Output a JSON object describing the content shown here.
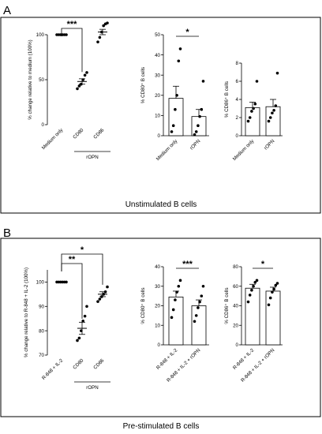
{
  "panels": {
    "A": {
      "letter": "A",
      "caption": "Unstimulated B cells"
    },
    "B": {
      "letter": "B",
      "caption": "Pre-stimulated B cells"
    }
  },
  "chart_data": [
    {
      "id": "A1",
      "type": "scatter",
      "panel": "A",
      "ylabel": "% change relative to medium (100%)",
      "ylim": [
        0,
        100
      ],
      "yticks": [
        "0",
        "50",
        "100"
      ],
      "categories": [
        "Medium only",
        "CD80",
        "CD86"
      ],
      "group_label": "rOPN",
      "group_spans": [
        1,
        2
      ],
      "points": [
        [
          100,
          100,
          100,
          100,
          100,
          100
        ],
        [
          40,
          43,
          45,
          50,
          55,
          58
        ],
        [
          92,
          97,
          103,
          110,
          112,
          113
        ]
      ],
      "means": [
        100,
        48,
        103
      ],
      "sem": [
        0,
        3,
        3
      ],
      "significance": [
        {
          "from": 0,
          "to": 1,
          "label": "***"
        }
      ]
    },
    {
      "id": "A2",
      "type": "bar",
      "panel": "A",
      "ylabel": "% CD80⁺ B cells",
      "ylim": [
        0,
        50
      ],
      "yticks": [
        "0",
        "10",
        "20",
        "30",
        "40",
        "50"
      ],
      "categories": [
        "Medium only",
        "rOPN"
      ],
      "values": [
        18.5,
        9.5
      ],
      "sem": [
        6,
        3.5
      ],
      "points": [
        [
          2,
          5,
          13,
          20,
          37,
          43
        ],
        [
          0.5,
          2,
          5,
          9.5,
          13,
          27
        ]
      ],
      "significance": [
        {
          "from": 0,
          "to": 1,
          "label": "*"
        }
      ]
    },
    {
      "id": "A3",
      "type": "bar",
      "panel": "A",
      "ylabel": "% CD86⁺ B cells",
      "ylim": [
        0,
        8
      ],
      "yticks": [
        "0",
        "2",
        "4",
        "6",
        "8"
      ],
      "categories": [
        "Medium only",
        "rOPN"
      ],
      "values": [
        3.1,
        3.2
      ],
      "sem": [
        0.6,
        0.8
      ],
      "points": [
        [
          1.6,
          2,
          2.7,
          3,
          3.5,
          6
        ],
        [
          1.6,
          2,
          2.5,
          2.8,
          3.3,
          6.9
        ]
      ]
    },
    {
      "id": "B1",
      "type": "scatter",
      "panel": "B",
      "ylabel": "% change relative to R-848 + IL-2 (100%)",
      "ylim": [
        70,
        105
      ],
      "yticks": [
        "70",
        "80",
        "90",
        "100"
      ],
      "categories": [
        "R-848 + IL-2",
        "CD80",
        "CD86"
      ],
      "group_label": "rOPN",
      "group_spans": [
        1,
        2
      ],
      "points": [
        [
          100,
          100,
          100,
          100,
          100,
          100
        ],
        [
          76,
          77,
          80,
          84,
          86,
          90
        ],
        [
          92,
          93,
          94,
          95,
          96,
          98
        ]
      ],
      "means": [
        100,
        81,
        95
      ],
      "sem": [
        0,
        2.5,
        1
      ],
      "significance": [
        {
          "from": 0,
          "to": 1,
          "label": "**"
        },
        {
          "from": 0,
          "to": 2,
          "label": "*"
        }
      ]
    },
    {
      "id": "B2",
      "type": "bar",
      "panel": "B",
      "ylabel": "% CD80⁺ B cells",
      "ylim": [
        0,
        40
      ],
      "yticks": [
        "0",
        "10",
        "20",
        "30",
        "40"
      ],
      "categories": [
        "R-848 + IL-2",
        "R-848 + IL-2 + rOPN"
      ],
      "values": [
        24.5,
        20
      ],
      "sem": [
        3,
        3
      ],
      "points": [
        [
          14,
          18,
          23,
          27,
          30,
          33
        ],
        [
          12,
          15,
          19,
          22,
          25,
          30
        ]
      ],
      "significance": [
        {
          "from": 0,
          "to": 1,
          "label": "***"
        }
      ]
    },
    {
      "id": "B3",
      "type": "bar",
      "panel": "B",
      "ylabel": "% CD86⁺ B cells",
      "ylim": [
        0,
        80
      ],
      "yticks": [
        "0",
        "20",
        "40",
        "60",
        "80"
      ],
      "categories": [
        "R-848 + IL-2",
        "R-848 + IL-2 + rOPN"
      ],
      "values": [
        58,
        55
      ],
      "sem": [
        4,
        4
      ],
      "points": [
        [
          44,
          51,
          56,
          60,
          64,
          66
        ],
        [
          41,
          48,
          54,
          57,
          61,
          63
        ]
      ],
      "significance": [
        {
          "from": 0,
          "to": 1,
          "label": "*"
        }
      ]
    }
  ]
}
